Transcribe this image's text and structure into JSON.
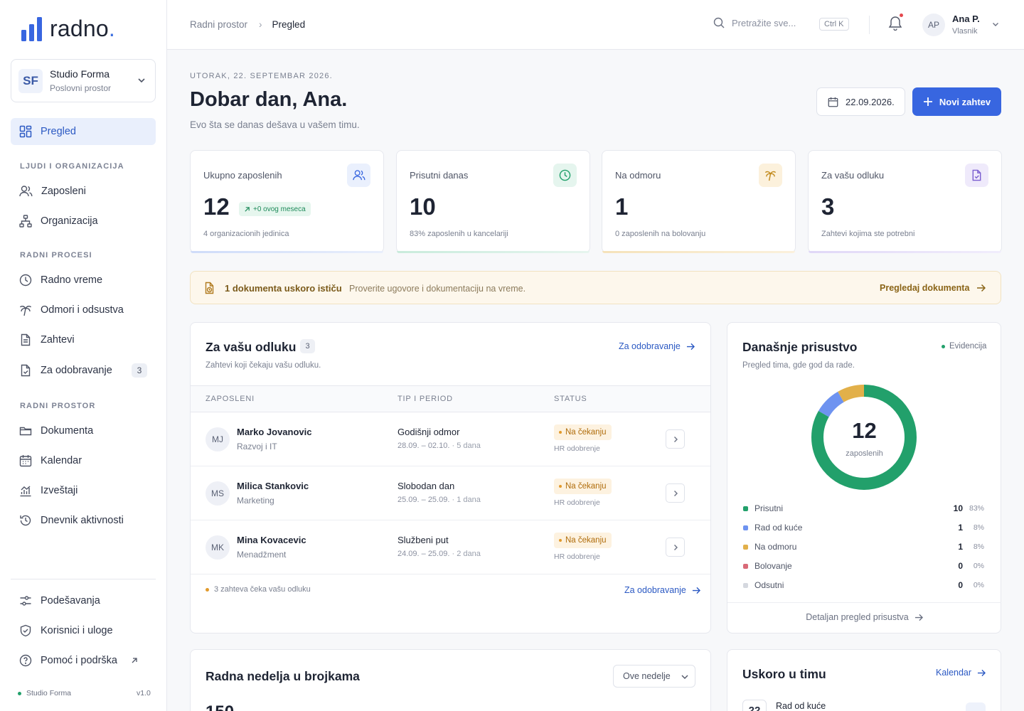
{
  "brand": {
    "name": "radno",
    "dot": "."
  },
  "workspace": {
    "initials": "SF",
    "name": "Studio Forma",
    "type": "Poslovni prostor"
  },
  "nav": {
    "overview": "Pregled",
    "sec_people": "LJUDI I ORGANIZACIJA",
    "employees": "Zaposleni",
    "organization": "Organizacija",
    "sec_processes": "RADNI PROCESI",
    "worktime": "Radno vreme",
    "leave": "Odmori i odsustva",
    "requests": "Zahtevi",
    "approval": "Za odobravanje",
    "approval_count": "3",
    "sec_workspace": "RADNI PROSTOR",
    "documents": "Dokumenta",
    "calendar": "Kalendar",
    "reports": "Izveštaji",
    "activity": "Dnevnik aktivnosti",
    "settings": "Podešavanja",
    "users": "Korisnici i uloge",
    "help": "Pomoć i podrška",
    "footer_org": "Studio Forma",
    "version": "v1.0"
  },
  "topbar": {
    "crumb_root": "Radni prostor",
    "crumb_sep": "›",
    "crumb_current": "Pregled",
    "search_placeholder": "Pretražite sve...",
    "shortcut": "Ctrl K",
    "user_initials": "AP",
    "user_name": "Ana P.",
    "user_role": "Vlasnik"
  },
  "header": {
    "date": "UTORAK, 22. SEPTEMBAR 2026.",
    "greeting": "Dobar dan, Ana.",
    "subtitle": "Evo šta se danas dešava u vašem timu.",
    "date_button": "22.09.2026.",
    "new_request": "Novi zahtev"
  },
  "stats": [
    {
      "label": "Ukupno zaposlenih",
      "value": "12",
      "chip": "+0 ovog meseca",
      "sub": "4 organizacionih jedinica",
      "color": "#3866e0"
    },
    {
      "label": "Prisutni danas",
      "value": "10",
      "sub": "83% zaposlenih u kancelariji",
      "color": "#22a06b"
    },
    {
      "label": "Na odmoru",
      "value": "1",
      "sub": "0 zaposlenih na bolovanju",
      "color": "#e2a93b"
    },
    {
      "label": "Za vašu odluku",
      "value": "3",
      "sub": "Zahtevi kojima ste potrebni",
      "color": "#8b6fd6"
    }
  ],
  "alert": {
    "title": "1 dokumenta uskoro ističu",
    "text": "Proverite ugovore i dokumentaciju na vreme.",
    "link": "Pregledaj dokumenta"
  },
  "decisions": {
    "title": "Za vašu odluku",
    "count": "3",
    "subtitle": "Zahtevi koji čekaju vašu odluku.",
    "link": "Za odobravanje",
    "columns": [
      "ZAPOSLENI",
      "TIP I PERIOD",
      "STATUS"
    ],
    "rows": [
      {
        "initials": "MJ",
        "name": "Marko Jovanovic",
        "dept": "Razvoj i IT",
        "type": "Godišnji odmor",
        "period": "28.09. – 02.10.",
        "days": "· 5 dana",
        "status": "Na čekanju",
        "step": "HR odobrenje"
      },
      {
        "initials": "MS",
        "name": "Milica Stankovic",
        "dept": "Marketing",
        "type": "Slobodan dan",
        "period": "25.09. – 25.09.",
        "days": "· 1 dana",
        "status": "Na čekanju",
        "step": "HR odobrenje"
      },
      {
        "initials": "MK",
        "name": "Mina Kovacevic",
        "dept": "Menadžment",
        "type": "Službeni put",
        "period": "24.09. – 25.09.",
        "days": "· 2 dana",
        "status": "Na čekanju",
        "step": "HR odobrenje"
      }
    ],
    "footer": "3 zahteva čeka vašu odluku",
    "footer_link": "Za odobravanje"
  },
  "attendance": {
    "title": "Današnje prisustvo",
    "tag": "Evidencija",
    "subtitle": "Pregled tima, gde god da rade.",
    "total": "12",
    "total_label": "zaposlenih",
    "legend": [
      {
        "name": "Prisutni",
        "value": 10,
        "pct": "83%",
        "color": "#22a06b"
      },
      {
        "name": "Rad od kuće",
        "value": 1,
        "pct": "8%",
        "color": "#6e93f0"
      },
      {
        "name": "Na odmoru",
        "value": 1,
        "pct": "8%",
        "color": "#e2b04a"
      },
      {
        "name": "Bolovanje",
        "value": 0,
        "pct": "0%",
        "color": "#d96a78"
      },
      {
        "name": "Odsutni",
        "value": 0,
        "pct": "0%",
        "color": "#d5d8df"
      }
    ],
    "link": "Detaljan pregled prisustva"
  },
  "week": {
    "title": "Radna nedelja u brojkama",
    "select": "Ove nedelje",
    "big": "150"
  },
  "upcoming": {
    "title": "Uskoro u timu",
    "link": "Kalendar",
    "first_day": "22",
    "first_text": "Rad od kuće"
  }
}
